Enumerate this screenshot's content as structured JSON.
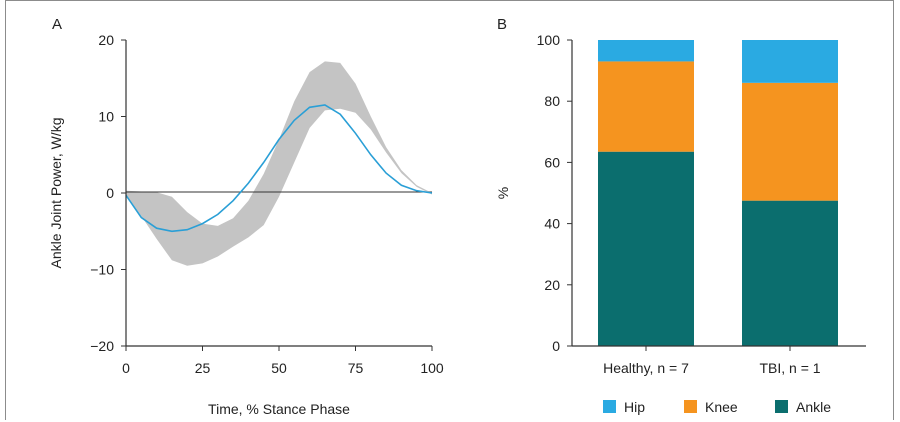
{
  "chart_data": [
    {
      "panel_label": "A",
      "type": "line",
      "xlabel": "Time, % Stance Phase",
      "ylabel": "Ankle Joint Power, W/kg",
      "xlim": [
        0,
        100
      ],
      "ylim": [
        -20,
        20
      ],
      "xticks": [
        0,
        25,
        50,
        75,
        100
      ],
      "xtick_labels": [
        "0",
        "25",
        "50",
        "75",
        "100"
      ],
      "yticks": [
        -20,
        -10,
        0,
        10,
        20
      ],
      "ytick_labels": [
        "−20",
        "−10",
        "0",
        "10",
        "20"
      ],
      "zero_line": true,
      "band": {
        "color": "#c4c4c4",
        "x": [
          0,
          5,
          10,
          15,
          20,
          25,
          30,
          35,
          40,
          45,
          50,
          55,
          60,
          65,
          70,
          75,
          80,
          85,
          90,
          95,
          100
        ],
        "upper": [
          0.3,
          0.2,
          0.1,
          -0.5,
          -2.5,
          -4.0,
          -4.3,
          -3.3,
          -1.0,
          2.5,
          7.0,
          12.0,
          15.8,
          17.2,
          17.0,
          14.3,
          10.0,
          6.0,
          3.0,
          1.0,
          0.0
        ],
        "lower": [
          -0.2,
          -3.0,
          -6.0,
          -8.8,
          -9.5,
          -9.2,
          -8.3,
          -7.0,
          -5.8,
          -4.2,
          -0.5,
          4.0,
          8.5,
          10.8,
          11.0,
          10.5,
          8.3,
          5.3,
          2.6,
          0.8,
          -0.2
        ]
      },
      "series": [
        {
          "color": "#2a9fd6",
          "x": [
            0,
            5,
            10,
            15,
            20,
            25,
            30,
            35,
            40,
            45,
            50,
            55,
            60,
            65,
            70,
            75,
            80,
            85,
            90,
            95,
            100
          ],
          "y": [
            -0.3,
            -3.2,
            -4.6,
            -5.0,
            -4.8,
            -4.0,
            -2.8,
            -1.0,
            1.3,
            4.0,
            7.0,
            9.5,
            11.2,
            11.5,
            10.3,
            7.8,
            5.0,
            2.6,
            1.0,
            0.3,
            0.0
          ]
        }
      ]
    },
    {
      "panel_label": "B",
      "type": "bar",
      "stacked": true,
      "ylabel": "%",
      "ylim": [
        0,
        100
      ],
      "yticks": [
        0,
        20,
        40,
        60,
        80,
        100
      ],
      "categories": [
        "Healthy, n = 7",
        "TBI, n = 1"
      ],
      "series": [
        {
          "name": "Ankle",
          "color": "#0b6e6e",
          "values": [
            63.5,
            47.5
          ]
        },
        {
          "name": "Knee",
          "color": "#f5941f",
          "values": [
            29.5,
            38.5
          ]
        },
        {
          "name": "Hip",
          "color": "#2aaae2",
          "values": [
            7.0,
            14.0
          ]
        }
      ],
      "legend": {
        "position": "bottom",
        "order": [
          "Hip",
          "Knee",
          "Ankle"
        ]
      }
    }
  ]
}
